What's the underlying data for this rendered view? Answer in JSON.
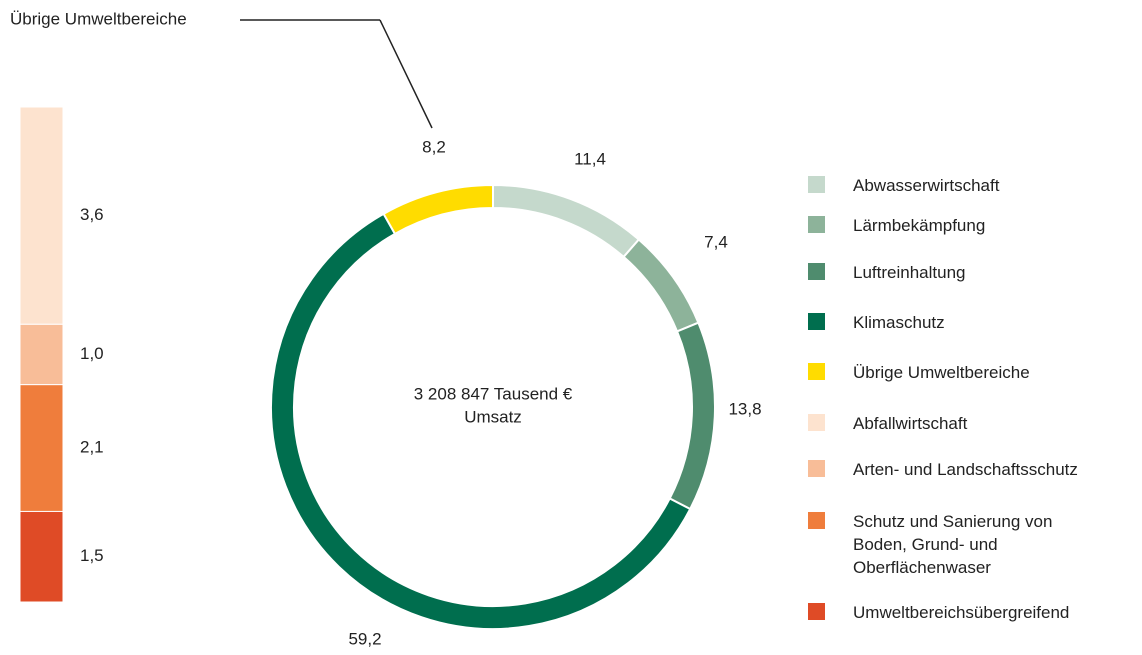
{
  "chart_data": [
    {
      "type": "donut",
      "categories": [
        "Abwasserwirtschaft",
        "Lärmbekämpfung",
        "Luftreinhaltung",
        "Klimaschutz",
        "Übrige Umweltbereiche"
      ],
      "values": [
        11.4,
        7.4,
        13.8,
        59.2,
        8.2
      ],
      "value_labels": [
        "11,4",
        "7,4",
        "13,8",
        "59,2",
        "8,2"
      ],
      "colors": [
        "#c5d9cc",
        "#8db39a",
        "#4f8c6e",
        "#006e4e",
        "#ffdc00"
      ],
      "center_text": [
        "3 208 847 Tausend €",
        "Umsatz"
      ],
      "annotation": "Übrige Umweltbereiche"
    },
    {
      "type": "stacked-bar",
      "categories": [
        "Abfallwirtschaft",
        "Arten- und Landschaftsschutz",
        "Schutz und Sanierung von\nBoden, Grund- und\nOberflächenwaser",
        "Umweltbereichsübergreifend"
      ],
      "values": [
        3.6,
        1.0,
        2.1,
        1.5
      ],
      "value_labels": [
        "3,6",
        "1,0",
        "2,1",
        "1,5"
      ],
      "colors": [
        "#fde3cf",
        "#f8bd98",
        "#ef7d3c",
        "#df4b26"
      ]
    }
  ]
}
